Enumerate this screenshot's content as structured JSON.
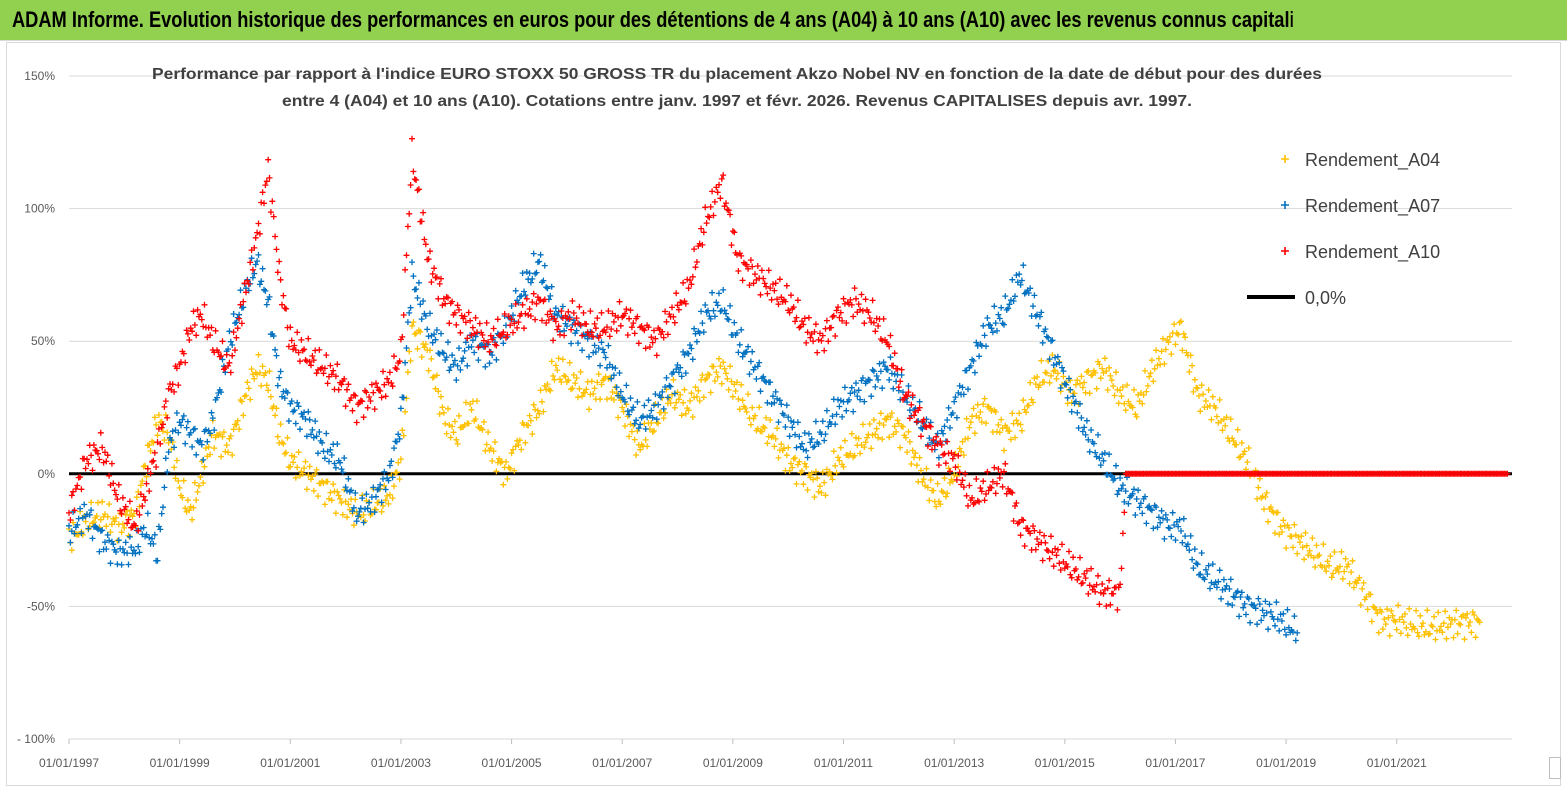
{
  "header": {
    "title": "ADAM Informe. Evolution historique des performances en euros pour des détentions de 4 ans (A04) à 10 ans (A10) avec les revenus connus capitalisés"
  },
  "colors": {
    "banner": "#92d050",
    "A04": "#ffc000",
    "A07": "#0070c0",
    "A10": "#ff0000",
    "zero_line": "#000000"
  },
  "chart_data": {
    "type": "scatter",
    "title_lines": [
      "Performance par rapport à l'indice EURO STOXX 50 GROSS TR  du placement Akzo Nobel NV en fonction de la date de début pour des durées",
      "entre 4 (A04) et 10 ans (A10). Cotations entre janv. 1997 et févr. 2026. Revenus CAPITALISES depuis avr. 1997."
    ],
    "xlabel": "",
    "ylabel": "",
    "x_range": [
      "1997-01-01",
      "2023-02-01"
    ],
    "x_tick_labels": [
      "01/01/1997",
      "01/01/1999",
      "01/01/2001",
      "01/01/2003",
      "01/01/2005",
      "01/01/2007",
      "01/01/2009",
      "01/01/2011",
      "01/01/2013",
      "01/01/2015",
      "01/01/2017",
      "01/01/2019",
      "01/01/2021"
    ],
    "ylim": [
      -100,
      150
    ],
    "y_ticks": [
      -100,
      -50,
      0,
      50,
      100,
      150
    ],
    "y_tick_labels": [
      "- 100%",
      "-50%",
      "0%",
      "50%",
      "100%",
      "150%"
    ],
    "grid": "horizontal",
    "legend_position": "right",
    "legend": [
      {
        "label": "Rendement_A04",
        "marker": "plus",
        "color": "#ffc000"
      },
      {
        "label": "Rendement_A07",
        "marker": "plus",
        "color": "#0070c0"
      },
      {
        "label": "Rendement_A10",
        "marker": "plus",
        "color": "#ff0000"
      },
      {
        "label": "0,0%",
        "marker": "line",
        "color": "#000000"
      }
    ],
    "series": [
      {
        "name": "Rendement_A04",
        "x": [
          1997.0,
          1997.3,
          1997.6,
          1997.9,
          1998.2,
          1998.4,
          1998.6,
          1998.8,
          1999.0,
          1999.2,
          1999.4,
          1999.6,
          1999.9,
          2000.2,
          2000.4,
          2000.6,
          2000.8,
          2001.0,
          2001.3,
          2001.6,
          2001.9,
          2002.2,
          2002.5,
          2002.8,
          2003.0,
          2003.2,
          2003.5,
          2003.8,
          2004.0,
          2004.3,
          2004.6,
          2004.9,
          2005.2,
          2005.5,
          2005.8,
          2006.1,
          2006.4,
          2006.7,
          2007.0,
          2007.3,
          2007.6,
          2007.9,
          2008.2,
          2008.5,
          2008.8,
          2009.1,
          2009.4,
          2009.7,
          2010.0,
          2010.3,
          2010.6,
          2010.9,
          2011.2,
          2011.5,
          2011.8,
          2012.1,
          2012.4,
          2012.7,
          2013.0,
          2013.3,
          2013.6,
          2013.9,
          2014.2,
          2014.5,
          2014.8,
          2015.1,
          2015.4,
          2015.7,
          2016.0,
          2016.3,
          2016.6,
          2016.9,
          2017.1,
          2017.4,
          2017.7,
          2018.0,
          2018.3,
          2018.6,
          2018.9,
          2019.2,
          2019.5,
          2019.8,
          2020.1,
          2020.4,
          2020.7,
          2021.0,
          2021.3,
          2021.6,
          2021.9,
          2022.2,
          2022.5
        ],
        "values": [
          -25,
          -18,
          -15,
          -20,
          -15,
          5,
          20,
          15,
          -5,
          -15,
          0,
          15,
          10,
          30,
          40,
          35,
          15,
          5,
          0,
          -5,
          -10,
          -15,
          -12,
          -8,
          5,
          55,
          45,
          20,
          15,
          25,
          10,
          0,
          15,
          25,
          40,
          35,
          30,
          35,
          25,
          10,
          20,
          30,
          25,
          35,
          40,
          30,
          20,
          15,
          5,
          0,
          -5,
          5,
          10,
          15,
          20,
          15,
          0,
          -10,
          0,
          20,
          25,
          15,
          20,
          35,
          40,
          30,
          35,
          40,
          30,
          25,
          40,
          50,
          55,
          30,
          25,
          15,
          5,
          -10,
          -20,
          -25,
          -30,
          -35,
          -35,
          -45,
          -55,
          -55,
          -57,
          -58,
          -57,
          -56,
          -56
        ]
      },
      {
        "name": "Rendement_A07",
        "x": [
          1997.0,
          1997.3,
          1997.6,
          1997.9,
          1998.2,
          1998.4,
          1998.6,
          1998.8,
          1999.0,
          1999.2,
          1999.4,
          1999.6,
          1999.9,
          2000.2,
          2000.4,
          2000.6,
          2000.8,
          2001.0,
          2001.3,
          2001.6,
          2001.9,
          2002.2,
          2002.5,
          2002.8,
          2003.0,
          2003.2,
          2003.5,
          2003.8,
          2004.0,
          2004.3,
          2004.6,
          2004.9,
          2005.2,
          2005.5,
          2005.8,
          2006.1,
          2006.4,
          2006.7,
          2007.0,
          2007.3,
          2007.6,
          2007.9,
          2008.2,
          2008.5,
          2008.8,
          2009.1,
          2009.4,
          2009.7,
          2010.0,
          2010.3,
          2010.6,
          2010.9,
          2011.2,
          2011.5,
          2011.8,
          2012.1,
          2012.4,
          2012.7,
          2013.0,
          2013.3,
          2013.6,
          2013.9,
          2014.2,
          2014.5,
          2014.8,
          2015.1,
          2015.4,
          2015.7,
          2016.0,
          2016.3,
          2016.6,
          2016.9,
          2017.1,
          2017.4,
          2017.7,
          2018.0,
          2018.3,
          2018.6,
          2018.9,
          2019.2
        ],
        "values": [
          -22,
          -15,
          -25,
          -30,
          -28,
          -20,
          -30,
          10,
          20,
          15,
          10,
          20,
          50,
          70,
          80,
          65,
          35,
          25,
          20,
          10,
          5,
          -15,
          -10,
          0,
          20,
          75,
          55,
          45,
          40,
          50,
          45,
          55,
          70,
          80,
          60,
          55,
          50,
          45,
          30,
          20,
          25,
          35,
          45,
          60,
          65,
          50,
          40,
          30,
          20,
          10,
          15,
          25,
          30,
          35,
          40,
          30,
          20,
          10,
          25,
          40,
          55,
          60,
          75,
          60,
          45,
          30,
          15,
          5,
          -5,
          -10,
          -15,
          -20,
          -20,
          -35,
          -40,
          -45,
          -50,
          -52,
          -55,
          -60
        ]
      },
      {
        "name": "Rendement_A10",
        "x": [
          1997.0,
          1997.3,
          1997.6,
          1997.9,
          1998.2,
          1998.4,
          1998.6,
          1998.8,
          1999.0,
          1999.2,
          1999.4,
          1999.6,
          1999.9,
          2000.2,
          2000.4,
          2000.6,
          2000.8,
          2001.0,
          2001.3,
          2001.6,
          2001.9,
          2002.2,
          2002.5,
          2002.8,
          2003.0,
          2003.2,
          2003.5,
          2003.8,
          2004.0,
          2004.3,
          2004.6,
          2004.9,
          2005.2,
          2005.5,
          2005.8,
          2006.1,
          2006.4,
          2006.7,
          2007.0,
          2007.3,
          2007.6,
          2007.9,
          2008.2,
          2008.5,
          2008.8,
          2009.1,
          2009.4,
          2009.7,
          2010.0,
          2010.3,
          2010.6,
          2010.9,
          2011.2,
          2011.5,
          2011.8,
          2012.1,
          2012.4,
          2012.7,
          2013.0,
          2013.3,
          2013.6,
          2013.9,
          2014.2,
          2014.5,
          2014.8,
          2015.1,
          2015.4,
          2015.7,
          2016.0,
          2016.1,
          2016.5,
          2017.0,
          2017.5,
          2018.0,
          2018.5,
          2019.0,
          2019.5,
          2020.0,
          2020.5,
          2021.0,
          2021.5,
          2022.0,
          2022.5,
          2023.0
        ],
        "values": [
          -15,
          5,
          10,
          -10,
          -20,
          -5,
          10,
          30,
          40,
          55,
          60,
          50,
          40,
          70,
          90,
          115,
          75,
          50,
          45,
          40,
          35,
          25,
          30,
          35,
          45,
          120,
          80,
          65,
          60,
          55,
          50,
          55,
          60,
          65,
          55,
          60,
          55,
          55,
          60,
          55,
          50,
          60,
          70,
          95,
          110,
          80,
          75,
          70,
          65,
          55,
          50,
          60,
          65,
          60,
          50,
          30,
          20,
          10,
          5,
          -10,
          -5,
          0,
          -20,
          -25,
          -30,
          -35,
          -40,
          -45,
          -45,
          0,
          0,
          0,
          0,
          0,
          0,
          0,
          0,
          0,
          0,
          0,
          0,
          0,
          0,
          0
        ]
      }
    ],
    "reference_line": {
      "label": "0,0%",
      "y": 0
    }
  }
}
